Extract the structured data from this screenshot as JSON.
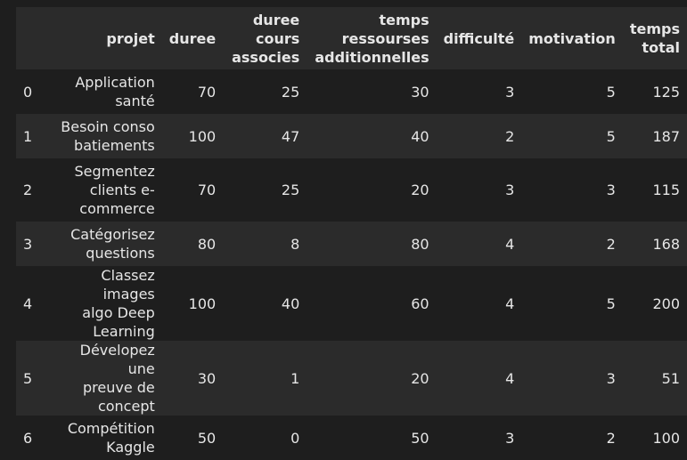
{
  "table": {
    "columns": {
      "index": "",
      "projet": "projet",
      "duree": "duree",
      "cours": [
        "duree",
        "cours",
        "associes"
      ],
      "temps": [
        "temps",
        "ressourses",
        "additionnelles"
      ],
      "difficulte": "difficulté",
      "motivation": "motivation",
      "total": [
        "temps",
        "total"
      ]
    },
    "rows": [
      {
        "idx": "0",
        "projet": [
          "Application",
          "santé"
        ],
        "duree": "70",
        "cours": "25",
        "temps": "30",
        "difficulte": "3",
        "motivation": "5",
        "total": "125"
      },
      {
        "idx": "1",
        "projet": [
          "Besoin conso",
          "batiements"
        ],
        "duree": "100",
        "cours": "47",
        "temps": "40",
        "difficulte": "2",
        "motivation": "5",
        "total": "187"
      },
      {
        "idx": "2",
        "projet": [
          "Segmentez",
          "clients e-",
          "commerce"
        ],
        "duree": "70",
        "cours": "25",
        "temps": "20",
        "difficulte": "3",
        "motivation": "3",
        "total": "115"
      },
      {
        "idx": "3",
        "projet": [
          "Catégorisez",
          "questions"
        ],
        "duree": "80",
        "cours": "8",
        "temps": "80",
        "difficulte": "4",
        "motivation": "2",
        "total": "168"
      },
      {
        "idx": "4",
        "projet": [
          "Classez images",
          "algo Deep",
          "Learning"
        ],
        "duree": "100",
        "cours": "40",
        "temps": "60",
        "difficulte": "4",
        "motivation": "5",
        "total": "200"
      },
      {
        "idx": "5",
        "projet": [
          "Dévelopez une",
          "preuve de",
          "concept"
        ],
        "duree": "30",
        "cours": "1",
        "temps": "20",
        "difficulte": "4",
        "motivation": "3",
        "total": "51"
      },
      {
        "idx": "6",
        "projet": [
          "Compétition",
          "Kaggle"
        ],
        "duree": "50",
        "cours": "0",
        "temps": "50",
        "difficulte": "3",
        "motivation": "2",
        "total": "100"
      }
    ]
  }
}
